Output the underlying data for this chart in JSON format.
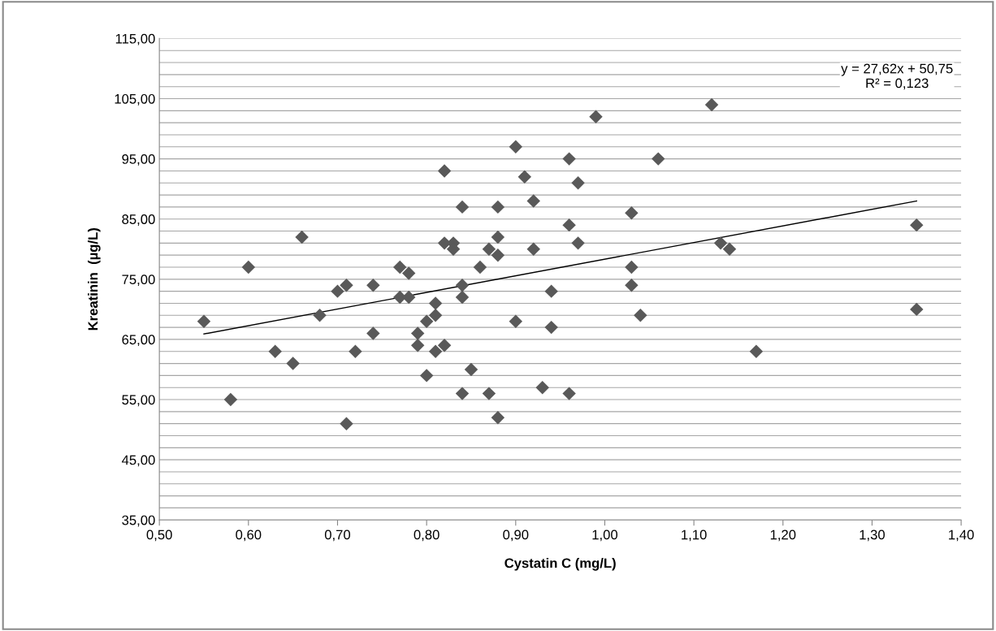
{
  "chart_data": {
    "type": "scatter",
    "xlabel": "Cystatin C (mg/L)",
    "ylabel": "Kreatinin  (µg/L)",
    "annotations": [
      "y = 27,62x + 50,75\nR² = 0,123"
    ],
    "series": [
      {
        "color": "#595959",
        "marker": "diamond",
        "x": [
          0.55,
          0.58,
          0.6,
          0.63,
          0.65,
          0.66,
          0.68,
          0.7,
          0.71,
          0.71,
          0.72,
          0.74,
          0.74,
          0.77,
          0.77,
          0.78,
          0.78,
          0.79,
          0.79,
          0.8,
          0.8,
          0.81,
          0.81,
          0.81,
          0.82,
          0.82,
          0.82,
          0.83,
          0.83,
          0.84,
          0.84,
          0.84,
          0.84,
          0.85,
          0.86,
          0.87,
          0.87,
          0.88,
          0.88,
          0.88,
          0.88,
          0.9,
          0.9,
          0.91,
          0.92,
          0.92,
          0.93,
          0.94,
          0.94,
          0.96,
          0.96,
          0.96,
          0.97,
          0.97,
          0.99,
          1.03,
          1.03,
          1.03,
          1.04,
          1.06,
          1.12,
          1.13,
          1.14,
          1.17,
          1.35,
          1.35
        ],
        "values": [
          68,
          55,
          77,
          63,
          61,
          82,
          69,
          73,
          74,
          51,
          63,
          74,
          66,
          77,
          72,
          76,
          72,
          66,
          64,
          68,
          59,
          71,
          69,
          63,
          93,
          81,
          64,
          81,
          80,
          87,
          74,
          72,
          56,
          60,
          77,
          80,
          56,
          87,
          82,
          79,
          52,
          97,
          68,
          92,
          88,
          80,
          57,
          73,
          67,
          95,
          84,
          56,
          91,
          81,
          102,
          86,
          77,
          74,
          69,
          95,
          104,
          81,
          80,
          63,
          84,
          70
        ]
      },
      {
        "type": "line",
        "color": "#000000",
        "marker": "none",
        "line_style": "solid",
        "x": [
          0.55,
          1.35
        ],
        "values": [
          65.9,
          88.0
        ]
      }
    ],
    "xlim": [
      0.5,
      1.4
    ],
    "xticks": [
      {
        "value": 0.5,
        "label": "0,50"
      },
      {
        "value": 0.6,
        "label": "0,60"
      },
      {
        "value": 0.7,
        "label": "0,70"
      },
      {
        "value": 0.8,
        "label": "0,80"
      },
      {
        "value": 0.9,
        "label": "0,90"
      },
      {
        "value": 1.0,
        "label": "1,00"
      },
      {
        "value": 1.1,
        "label": "1,10"
      },
      {
        "value": 1.2,
        "label": "1,20"
      },
      {
        "value": 1.3,
        "label": "1,30"
      },
      {
        "value": 1.4,
        "label": "1,40"
      }
    ],
    "ylim": [
      35,
      115
    ],
    "yticks": [
      {
        "value": 35,
        "label": "35,00"
      },
      {
        "value": 37,
        "label": null
      },
      {
        "value": 39,
        "label": null
      },
      {
        "value": 41,
        "label": null
      },
      {
        "value": 43,
        "label": null
      },
      {
        "value": 45,
        "label": "45,00"
      },
      {
        "value": 47,
        "label": null
      },
      {
        "value": 49,
        "label": null
      },
      {
        "value": 51,
        "label": null
      },
      {
        "value": 53,
        "label": null
      },
      {
        "value": 55,
        "label": "55,00"
      },
      {
        "value": 57,
        "label": null
      },
      {
        "value": 59,
        "label": null
      },
      {
        "value": 61,
        "label": null
      },
      {
        "value": 63,
        "label": null
      },
      {
        "value": 65,
        "label": "65,00"
      },
      {
        "value": 67,
        "label": null
      },
      {
        "value": 69,
        "label": null
      },
      {
        "value": 71,
        "label": null
      },
      {
        "value": 73,
        "label": null
      },
      {
        "value": 75,
        "label": "75,00"
      },
      {
        "value": 77,
        "label": null
      },
      {
        "value": 79,
        "label": null
      },
      {
        "value": 81,
        "label": null
      },
      {
        "value": 83,
        "label": null
      },
      {
        "value": 85,
        "label": "85,00"
      },
      {
        "value": 87,
        "label": null
      },
      {
        "value": 89,
        "label": null
      },
      {
        "value": 91,
        "label": null
      },
      {
        "value": 93,
        "label": null
      },
      {
        "value": 95,
        "label": "95,00"
      },
      {
        "value": 97,
        "label": null
      },
      {
        "value": 99,
        "label": null
      },
      {
        "value": 101,
        "label": null
      },
      {
        "value": 103,
        "label": null
      },
      {
        "value": 105,
        "label": "105,00"
      },
      {
        "value": 107,
        "label": null
      },
      {
        "value": 109,
        "label": null
      },
      {
        "value": 111,
        "label": null
      },
      {
        "value": 113,
        "label": null
      },
      {
        "value": 115,
        "label": "115,00"
      }
    ],
    "grid": "y"
  }
}
